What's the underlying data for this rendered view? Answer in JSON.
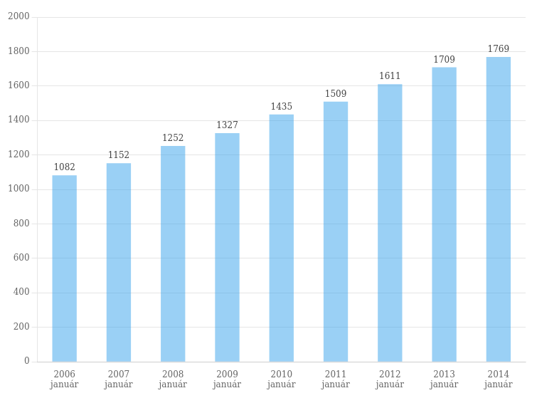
{
  "chart_data": {
    "type": "bar",
    "categories": [
      "2006\njanuár",
      "2007\njanuár",
      "2008\njanuár",
      "2009\njanuár",
      "2010\njanuár",
      "2011\njanuár",
      "2012\njanuár",
      "2013\njanuár",
      "2014\njanuár"
    ],
    "values": [
      1082,
      1152,
      1252,
      1327,
      1435,
      1509,
      1611,
      1709,
      1769
    ],
    "ylim": [
      0,
      2000
    ],
    "yticks": [
      0,
      200,
      400,
      600,
      800,
      1000,
      1200,
      1400,
      1600,
      1800,
      2000
    ],
    "grid": true,
    "data_labels": true
  }
}
